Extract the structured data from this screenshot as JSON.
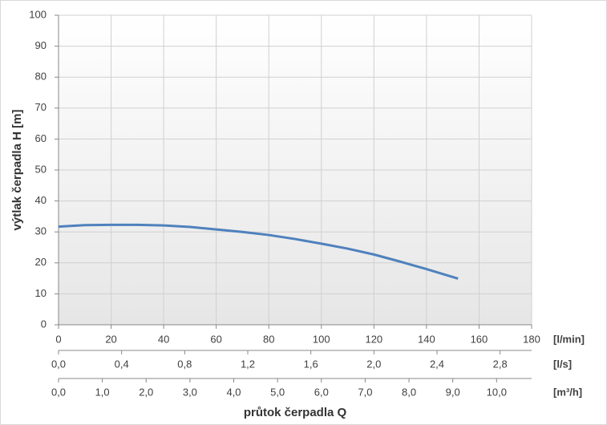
{
  "chart_data": {
    "type": "line",
    "y_label": "výtlak čerpadla H [m]",
    "x_label": "průtok čerpadla Q",
    "x": [
      0,
      10,
      20,
      30,
      40,
      50,
      60,
      70,
      80,
      90,
      100,
      110,
      120,
      130,
      140,
      152
    ],
    "series": [
      {
        "color": "#4f81bd",
        "values": [
          31.7,
          32.2,
          32.3,
          32.3,
          32.1,
          31.6,
          30.8,
          30,
          29,
          27.7,
          26.2,
          24.6,
          22.7,
          20.4,
          18,
          14.9
        ]
      }
    ],
    "xlim": [
      0,
      180
    ],
    "xticks": [
      0,
      20,
      40,
      60,
      80,
      100,
      120,
      140,
      160,
      180
    ],
    "x_unit": "[l/min]",
    "ylim": [
      0,
      100
    ],
    "yticks": [
      0,
      10,
      20,
      30,
      40,
      50,
      60,
      70,
      80,
      90,
      100
    ],
    "grid": true,
    "secondary_x_axes": [
      {
        "unit": "[l/s]",
        "xlim": [
          0,
          3
        ],
        "xticks": [
          {
            "value": 0,
            "label": "0,0"
          },
          {
            "value": 0.4,
            "label": "0,4"
          },
          {
            "value": 0.8,
            "label": "0,8"
          },
          {
            "value": 1.2,
            "label": "1,2"
          },
          {
            "value": 1.6,
            "label": "1,6"
          },
          {
            "value": 2.0,
            "label": "2,0"
          },
          {
            "value": 2.4,
            "label": "2,4"
          },
          {
            "value": 2.8,
            "label": "2,8"
          }
        ]
      },
      {
        "unit": "[m³/h]",
        "xlim": [
          0,
          10.8
        ],
        "xticks": [
          {
            "value": 0,
            "label": "0,0"
          },
          {
            "value": 1,
            "label": "1,0"
          },
          {
            "value": 2,
            "label": "2,0"
          },
          {
            "value": 3,
            "label": "3,0"
          },
          {
            "value": 4,
            "label": "4,0"
          },
          {
            "value": 5,
            "label": "5,0"
          },
          {
            "value": 6,
            "label": "6,0"
          },
          {
            "value": 7,
            "label": "7,0"
          },
          {
            "value": 8,
            "label": "8,0"
          },
          {
            "value": 9,
            "label": "9,0"
          },
          {
            "value": 10,
            "label": "10,0"
          }
        ]
      }
    ]
  }
}
